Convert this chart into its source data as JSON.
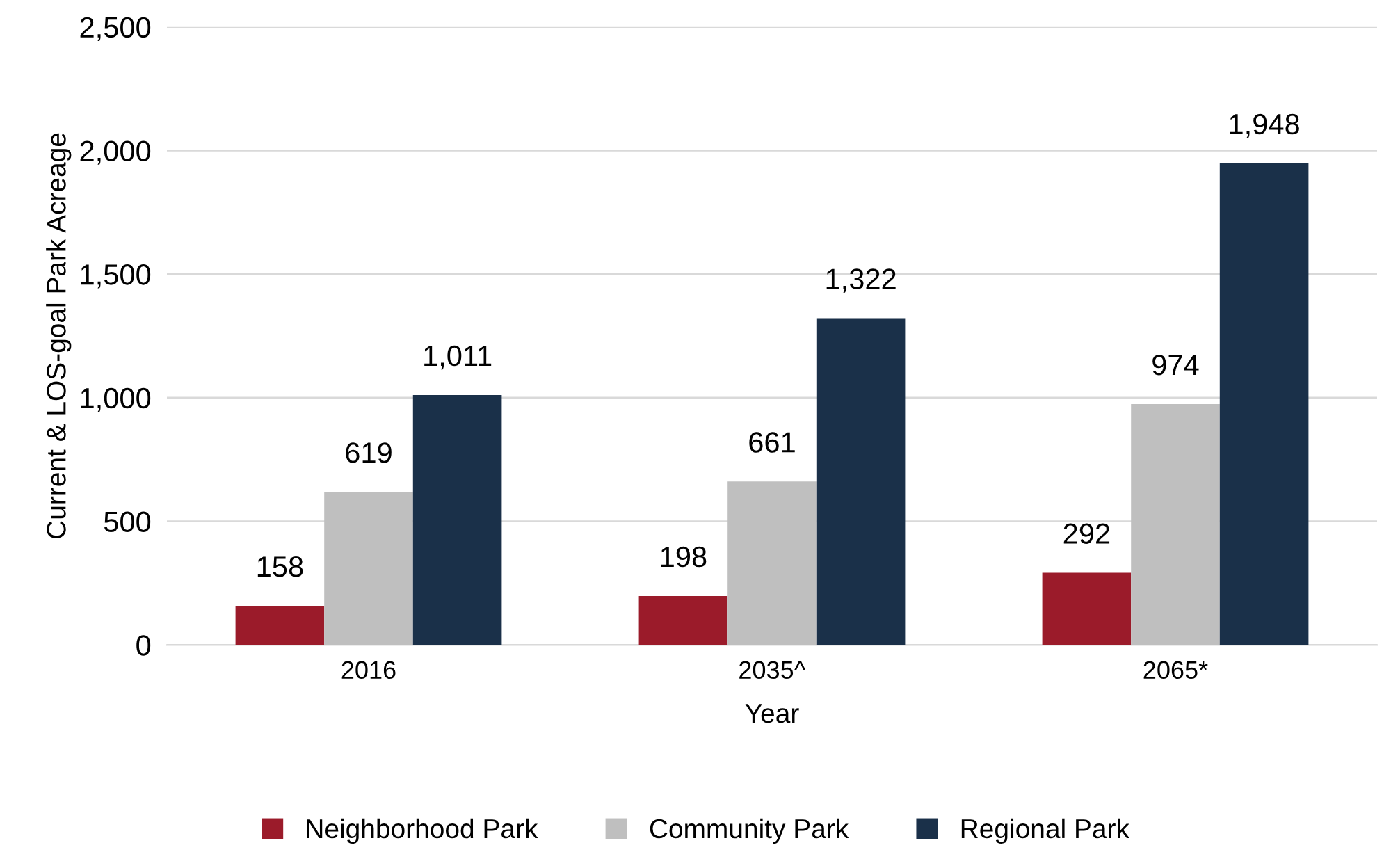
{
  "chart_data": {
    "type": "bar",
    "xlabel": "Year",
    "ylabel": "Current & LOS-goal Park Acreage",
    "categories": [
      "2016",
      "2035^",
      "2065*"
    ],
    "series": [
      {
        "name": "Neighborhood Park",
        "color": "#9b1b2a",
        "values": [
          158,
          198,
          292
        ]
      },
      {
        "name": "Community Park",
        "color": "#bfbfbf",
        "values": [
          619,
          661,
          974
        ]
      },
      {
        "name": "Regional Park",
        "color": "#1a3049",
        "values": [
          1011,
          1322,
          1948
        ]
      }
    ],
    "value_labels": [
      [
        "158",
        "198",
        "292"
      ],
      [
        "619",
        "661",
        "974"
      ],
      [
        "1,011",
        "1,322",
        "1,948"
      ]
    ],
    "ylim": [
      0,
      2500
    ],
    "yticks": [
      0,
      500,
      {
        "value": 1000,
        "label": "1,000"
      },
      {
        "value": 1500,
        "label": "1,500"
      },
      {
        "value": 2000,
        "label": "2,000"
      },
      {
        "value": 2500,
        "label": "2,500"
      }
    ],
    "grid": "y",
    "legend": "bottom"
  }
}
